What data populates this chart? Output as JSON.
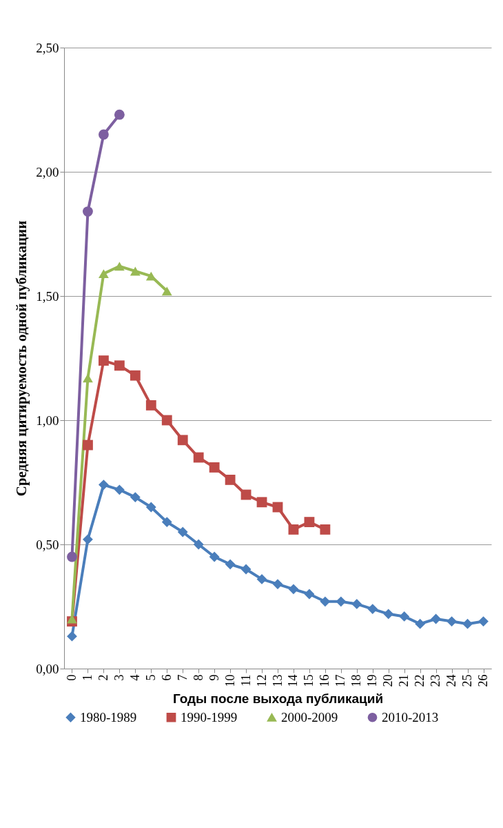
{
  "chart_data": {
    "type": "line",
    "xlabel": "Годы после выхода публикаций",
    "ylabel": "Средняя цитируемость одной публикации",
    "categories": [
      "0",
      "1",
      "2",
      "3",
      "4",
      "5",
      "6",
      "7",
      "8",
      "9",
      "10",
      "11",
      "12",
      "13",
      "14",
      "15",
      "16",
      "17",
      "18",
      "19",
      "20",
      "21",
      "22",
      "23",
      "24",
      "25",
      "26"
    ],
    "series": [
      {
        "name": "1980-1989",
        "color": "#4a7ebb",
        "marker": "diamond",
        "values": [
          0.13,
          0.52,
          0.74,
          0.72,
          0.69,
          0.65,
          0.59,
          0.55,
          0.5,
          0.45,
          0.42,
          0.4,
          0.36,
          0.34,
          0.32,
          0.3,
          0.27,
          0.27,
          0.26,
          0.24,
          0.22,
          0.21,
          0.18,
          0.2,
          0.19,
          0.18,
          0.19
        ]
      },
      {
        "name": "1990-1999",
        "color": "#be4b48",
        "marker": "square",
        "values": [
          0.19,
          0.9,
          1.24,
          1.22,
          1.18,
          1.06,
          1.0,
          0.92,
          0.85,
          0.81,
          0.76,
          0.7,
          0.67,
          0.65,
          0.56,
          0.59,
          0.56,
          null,
          null,
          null,
          null,
          null,
          null,
          null,
          null,
          null,
          null
        ]
      },
      {
        "name": "2000-2009",
        "color": "#98b954",
        "marker": "triangle",
        "values": [
          0.2,
          1.17,
          1.59,
          1.62,
          1.6,
          1.58,
          1.52,
          null,
          null,
          null,
          null,
          null,
          null,
          null,
          null,
          null,
          null,
          null,
          null,
          null,
          null,
          null,
          null,
          null,
          null,
          null,
          null
        ]
      },
      {
        "name": "2010-2013",
        "color": "#7d5fa0",
        "marker": "circle",
        "values": [
          0.45,
          1.84,
          2.15,
          2.23,
          null,
          null,
          null,
          null,
          null,
          null,
          null,
          null,
          null,
          null,
          null,
          null,
          null,
          null,
          null,
          null,
          null,
          null,
          null,
          null,
          null,
          null,
          null
        ]
      }
    ],
    "ylim": [
      0,
      2.5
    ],
    "yticks": [
      {
        "value": 0,
        "label": "0,00"
      },
      {
        "value": 0.5,
        "label": "0,50"
      },
      {
        "value": 1,
        "label": "1,00"
      },
      {
        "value": 1.5,
        "label": "1,50"
      },
      {
        "value": 2,
        "label": "2,00"
      },
      {
        "value": 2.5,
        "label": "2,50"
      }
    ],
    "grid": "y",
    "legend": "bottom"
  }
}
